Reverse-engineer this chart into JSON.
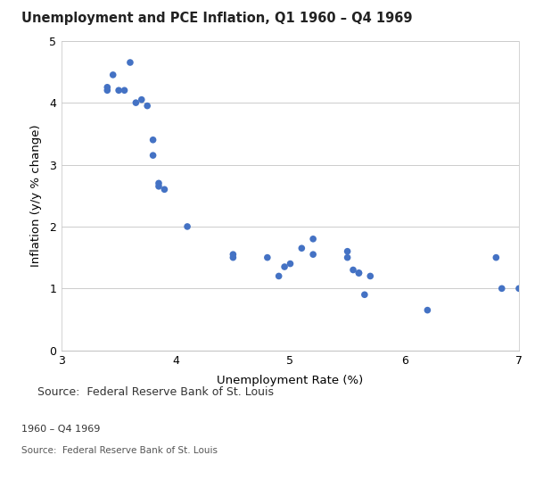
{
  "title": "Unemployment and PCE Inflation, Q1 1960 – Q4 1969",
  "xlabel": "Unemployment Rate (%)",
  "ylabel": "Inflation (y/y % change)",
  "source_text": "Source:  Federal Reserve Bank of St. Louis",
  "footer_text1": "1960 – Q4 1969",
  "footer_text2": "Source:  Federal Reserve Bank of St. Louis",
  "xlim": [
    3,
    7
  ],
  "ylim": [
    0,
    5
  ],
  "xticks": [
    3,
    4,
    5,
    6,
    7
  ],
  "yticks": [
    0,
    1,
    2,
    3,
    4,
    5
  ],
  "dot_color": "#4472C4",
  "dot_size": 30,
  "unemployment": [
    3.4,
    3.4,
    3.45,
    3.5,
    3.55,
    3.6,
    3.65,
    3.7,
    3.75,
    3.8,
    3.8,
    3.85,
    3.85,
    3.9,
    4.1,
    4.5,
    4.5,
    4.8,
    4.9,
    4.95,
    5.0,
    5.1,
    5.2,
    5.2,
    5.5,
    5.5,
    5.55,
    5.6,
    5.6,
    5.65,
    5.7,
    6.2,
    6.8,
    6.85,
    7.0
  ],
  "inflation": [
    4.2,
    4.25,
    4.45,
    4.2,
    4.2,
    4.65,
    4.0,
    4.05,
    3.95,
    3.4,
    3.15,
    2.7,
    2.65,
    2.6,
    2.0,
    1.5,
    1.55,
    1.5,
    1.2,
    1.35,
    1.4,
    1.65,
    1.8,
    1.55,
    1.5,
    1.6,
    1.3,
    1.25,
    1.25,
    0.9,
    1.2,
    0.65,
    1.5,
    1.0,
    1.0
  ],
  "background_color": "#ffffff",
  "plot_background_color": "#ffffff",
  "grid_color": "#cccccc",
  "title_fontsize": 10.5,
  "label_fontsize": 9.5,
  "tick_fontsize": 9,
  "source_fontsize": 9,
  "footer1_fontsize": 8,
  "footer2_fontsize": 7.5
}
